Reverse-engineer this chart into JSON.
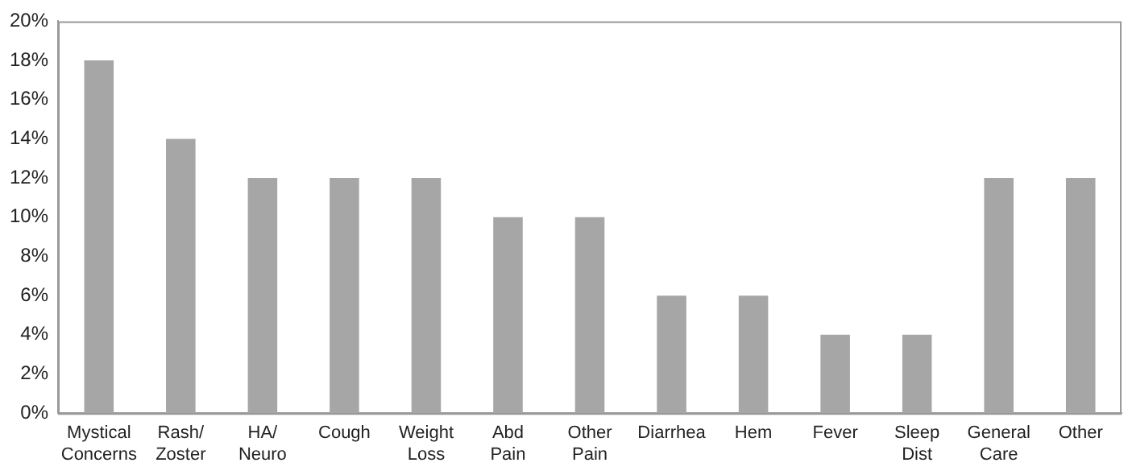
{
  "chart_data": {
    "type": "bar",
    "categories": [
      "Mystical Concerns",
      "Rash/Zoster",
      "HA/Neuro",
      "Cough",
      "Weight Loss",
      "Abd Pain",
      "Other Pain",
      "Diarrhea",
      "Hem",
      "Fever",
      "Sleep Dist",
      "General Care",
      "Other"
    ],
    "values": [
      18,
      14,
      12,
      12,
      12,
      10,
      10,
      6,
      6,
      4,
      4,
      12,
      12
    ],
    "color": "#a6a6a6",
    "ylim": [
      0,
      20
    ],
    "yticks": [
      {
        "value": 0,
        "label": "0%"
      },
      {
        "value": 2,
        "label": "2%"
      },
      {
        "value": 4,
        "label": "4%"
      },
      {
        "value": 6,
        "label": "6%"
      },
      {
        "value": 8,
        "label": "8%"
      },
      {
        "value": 10,
        "label": "10%"
      },
      {
        "value": 12,
        "label": "12%"
      },
      {
        "value": 14,
        "label": "14%"
      },
      {
        "value": 16,
        "label": "16%"
      },
      {
        "value": 18,
        "label": "18%"
      },
      {
        "value": 20,
        "label": "20%"
      }
    ],
    "grid": false,
    "legend": false
  }
}
